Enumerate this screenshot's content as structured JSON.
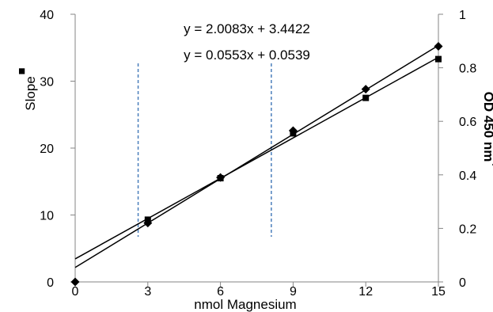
{
  "chart_data": {
    "type": "scatter",
    "xlabel": "nmol Magnesium",
    "ylabel_left": "Slope",
    "ylabel_right": "OD 450 nm",
    "left_marker_symbol": "■",
    "right_marker_symbol": "◆",
    "x_range": [
      0,
      15
    ],
    "x_ticks": [
      0,
      3,
      6,
      9,
      12,
      15
    ],
    "y_left_range": [
      0,
      40
    ],
    "y_left_ticks": [
      0,
      10,
      20,
      30,
      40
    ],
    "y_right_range": [
      0,
      1
    ],
    "y_right_ticks": [
      0,
      0.2,
      0.4,
      0.6,
      0.8,
      1
    ],
    "series": [
      {
        "axis": "left",
        "marker": "square",
        "x": [
          3,
          6,
          9,
          12,
          15
        ],
        "y": [
          9.3,
          15.5,
          22.2,
          27.5,
          33.3
        ],
        "trendline": {
          "slope": 2.0083,
          "intercept": 3.4422
        },
        "equation": "y = 2.0083x + 3.4422"
      },
      {
        "axis": "right",
        "marker": "diamond",
        "x": [
          0,
          3,
          6,
          9,
          12,
          15
        ],
        "y": [
          0,
          0.22,
          0.39,
          0.565,
          0.72,
          0.88
        ],
        "trendline": {
          "slope": 0.0553,
          "intercept": 0.0539
        },
        "equation": "y = 0.0553x + 0.0539"
      }
    ],
    "reference_lines_x": [
      2.6,
      8.1
    ],
    "reference_line_color": "#4a7ebb",
    "series_color": "#000000",
    "grid": false
  }
}
